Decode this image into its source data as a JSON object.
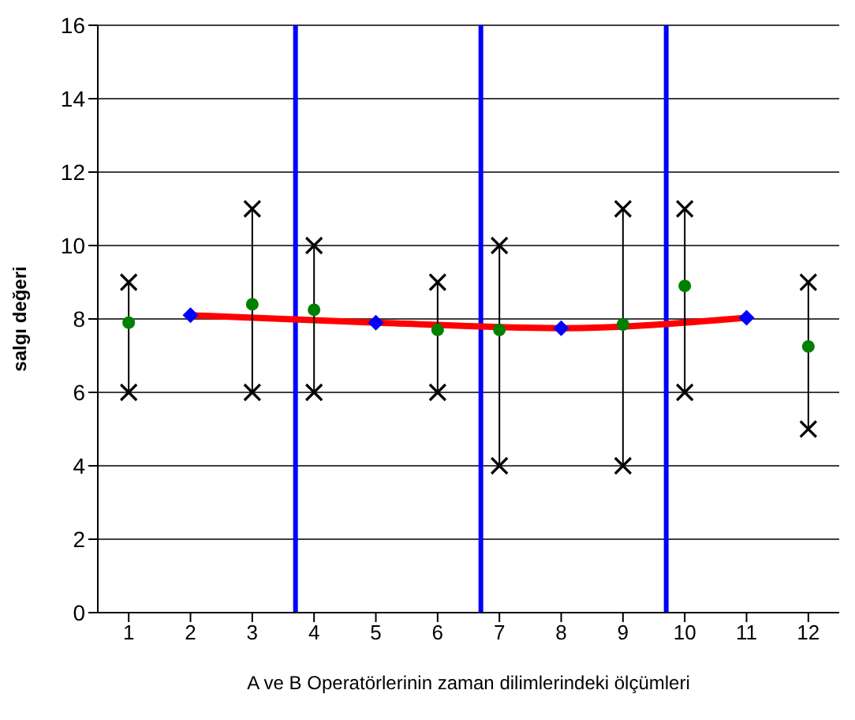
{
  "chart_data": {
    "type": "scatter",
    "xlabel": "A ve B Operatörlerinin zaman dilimlerindeki ölçümleri",
    "ylabel": "salgı değeri",
    "xlim": [
      0.5,
      12.5
    ],
    "xticks": [
      1,
      2,
      3,
      4,
      5,
      6,
      7,
      8,
      9,
      10,
      11,
      12
    ],
    "ylim": [
      0,
      16
    ],
    "yticks": [
      0,
      2,
      4,
      6,
      8,
      10,
      12,
      14,
      16
    ],
    "grid": "y",
    "legend": false,
    "series": [
      {
        "marker": "circle",
        "color": "#008000",
        "x": [
          1,
          3,
          4,
          6,
          7,
          9,
          10,
          12
        ],
        "values": [
          7.9,
          8.4,
          8.25,
          7.7,
          7.7,
          7.85,
          8.9,
          7.25
        ],
        "errors": [
          [
            6,
            9
          ],
          [
            6,
            11
          ],
          [
            6,
            10
          ],
          [
            6,
            9
          ],
          [
            4,
            10
          ],
          [
            4,
            11
          ],
          [
            6,
            11
          ],
          [
            5,
            9
          ]
        ]
      },
      {
        "marker": "cross",
        "color": "#000000",
        "x": [
          1,
          3,
          4,
          6,
          7,
          9,
          10,
          12
        ],
        "values": [
          9,
          11,
          10,
          9,
          10,
          11,
          11,
          9
        ]
      },
      {
        "marker": "cross",
        "color": "#000000",
        "x": [
          1,
          3,
          4,
          6,
          7,
          9,
          10,
          12
        ],
        "values": [
          6,
          6,
          6,
          6,
          4,
          4,
          6,
          5
        ]
      },
      {
        "type": "line",
        "marker": "none",
        "color": "#ff0000",
        "x": [
          2,
          5,
          8,
          11
        ],
        "values": [
          8.1,
          7.9,
          7.75,
          8.03
        ]
      },
      {
        "marker": "diamond",
        "color": "#0000ff",
        "x": [
          2,
          5,
          8,
          11
        ],
        "values": [
          8.1,
          7.9,
          7.75,
          8.03
        ]
      }
    ],
    "ref_lines": [
      {
        "axis": "x",
        "value": 3.7,
        "color": "#0000ff"
      },
      {
        "axis": "x",
        "value": 6.7,
        "color": "#0000ff"
      },
      {
        "axis": "x",
        "value": 9.7,
        "color": "#0000ff"
      }
    ]
  }
}
